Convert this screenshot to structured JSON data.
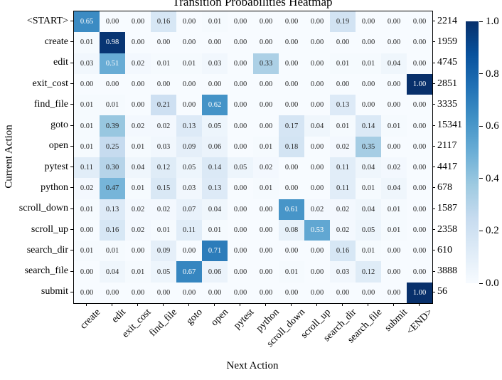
{
  "chart_data": {
    "type": "heatmap",
    "title": "Transition Probabilities Heatmap",
    "xlabel": "Next Action",
    "ylabel": "Current Action",
    "colormap": "Blues",
    "value_range": [
      0,
      1
    ],
    "columns": [
      "create",
      "edit",
      "exit_cost",
      "find_file",
      "goto",
      "open",
      "pytest",
      "python",
      "scroll_down",
      "scroll_up",
      "search_dir",
      "search_file",
      "submit",
      "<END>"
    ],
    "rows": [
      "<START>",
      "create",
      "edit",
      "exit_cost",
      "find_file",
      "goto",
      "open",
      "pytest",
      "python",
      "scroll_down",
      "scroll_up",
      "search_dir",
      "search_file",
      "submit"
    ],
    "row_counts": [
      2214,
      1959,
      4745,
      2851,
      3335,
      15341,
      2117,
      4417,
      678,
      1587,
      2358,
      610,
      3888,
      56
    ],
    "matrix": [
      [
        0.65,
        0.0,
        0.0,
        0.16,
        0.0,
        0.01,
        0.0,
        0.0,
        0.0,
        0.0,
        0.19,
        0.0,
        0.0,
        0.0
      ],
      [
        0.01,
        0.98,
        0.0,
        0.0,
        0.0,
        0.0,
        0.0,
        0.0,
        0.0,
        0.0,
        0.0,
        0.0,
        0.0,
        0.0
      ],
      [
        0.03,
        0.51,
        0.02,
        0.01,
        0.01,
        0.03,
        0.0,
        0.33,
        0.0,
        0.0,
        0.01,
        0.01,
        0.04,
        0.0
      ],
      [
        0.0,
        0.0,
        0.0,
        0.0,
        0.0,
        0.0,
        0.0,
        0.0,
        0.0,
        0.0,
        0.0,
        0.0,
        0.0,
        1.0
      ],
      [
        0.01,
        0.01,
        0.0,
        0.21,
        0.0,
        0.62,
        0.0,
        0.0,
        0.0,
        0.0,
        0.13,
        0.0,
        0.0,
        0.0
      ],
      [
        0.01,
        0.39,
        0.02,
        0.02,
        0.13,
        0.05,
        0.0,
        0.0,
        0.17,
        0.04,
        0.01,
        0.14,
        0.01,
        0.0
      ],
      [
        0.01,
        0.25,
        0.01,
        0.03,
        0.09,
        0.06,
        0.0,
        0.01,
        0.18,
        0.0,
        0.02,
        0.35,
        0.0,
        0.0
      ],
      [
        0.11,
        0.3,
        0.04,
        0.12,
        0.05,
        0.14,
        0.05,
        0.02,
        0.0,
        0.0,
        0.11,
        0.04,
        0.02,
        0.0
      ],
      [
        0.02,
        0.47,
        0.01,
        0.15,
        0.03,
        0.13,
        0.0,
        0.01,
        0.0,
        0.0,
        0.11,
        0.01,
        0.04,
        0.0
      ],
      [
        0.01,
        0.13,
        0.02,
        0.02,
        0.07,
        0.04,
        0.0,
        0.0,
        0.61,
        0.02,
        0.02,
        0.04,
        0.01,
        0.0
      ],
      [
        0.0,
        0.16,
        0.02,
        0.01,
        0.11,
        0.01,
        0.0,
        0.0,
        0.08,
        0.53,
        0.02,
        0.05,
        0.01,
        0.0
      ],
      [
        0.01,
        0.01,
        0.0,
        0.09,
        0.0,
        0.71,
        0.0,
        0.0,
        0.0,
        0.0,
        0.16,
        0.01,
        0.0,
        0.0
      ],
      [
        0.0,
        0.04,
        0.01,
        0.05,
        0.67,
        0.06,
        0.0,
        0.0,
        0.01,
        0.0,
        0.03,
        0.12,
        0.0,
        0.0
      ],
      [
        0.0,
        0.0,
        0.0,
        0.0,
        0.0,
        0.0,
        0.0,
        0.0,
        0.0,
        0.0,
        0.0,
        0.0,
        0.0,
        1.0
      ]
    ],
    "colorbar": {
      "tick_labels": [
        "1.0",
        "0.8",
        "0.6",
        "0.4",
        "0.2",
        "0.0"
      ],
      "tick_values": [
        1.0,
        0.8,
        0.6,
        0.4,
        0.2,
        0.0
      ]
    },
    "colors": {
      "colormap_low": "#f7fbff",
      "colormap_high": "#08306b",
      "blues_anchors": [
        [
          247,
          251,
          255
        ],
        [
          222,
          235,
          247
        ],
        [
          198,
          219,
          239
        ],
        [
          158,
          202,
          225
        ],
        [
          107,
          174,
          214
        ],
        [
          66,
          146,
          198
        ],
        [
          33,
          113,
          181
        ],
        [
          8,
          81,
          156
        ],
        [
          8,
          48,
          107
        ]
      ],
      "annotation_dark": "#262626",
      "annotation_light": "#ffffff",
      "axis_border": "#000000"
    },
    "layout_hints": {
      "grid": false,
      "colorbar_position": "right",
      "x_tick_rotation": 45
    }
  }
}
